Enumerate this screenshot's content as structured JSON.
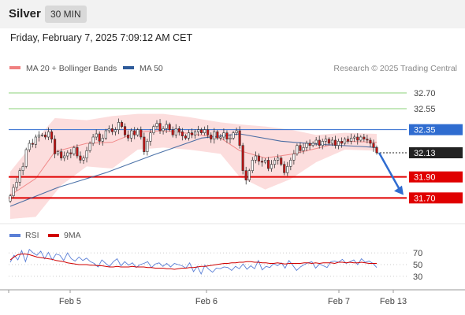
{
  "header": {
    "symbol": "Silver",
    "timeframe": "30 MIN"
  },
  "datetime": "Friday, February 7, 2025 7:09:12 AM CET",
  "colors": {
    "bollinger": "#f08080",
    "bollinger_fill": "#fbd7d7",
    "ma50": "#2e5b9a",
    "support": "#e00000",
    "resistance": "#8bd17a",
    "pivot": "#2f6cd0",
    "price": "#222222",
    "rsi": "#5a7fd6",
    "rsi_ma": "#d00000",
    "candle_up": "#ffffff",
    "candle_down": "#cc1111"
  },
  "chart_data": [
    {
      "type": "candlestick",
      "title": "",
      "legend": {
        "placement": "top-left",
        "entries": [
          "MA 20 + Bollinger Bands",
          "MA 50"
        ]
      },
      "credit": "Research © 2025 Trading Central",
      "x_ticks": [
        "Feb 5",
        "Feb 6",
        "Feb 7",
        "Feb 13"
      ],
      "ylim": [
        31.5,
        32.85
      ],
      "levels": [
        {
          "label": "32.70",
          "value": 32.7,
          "kind": "resistance"
        },
        {
          "label": "32.55",
          "value": 32.55,
          "kind": "resistance"
        },
        {
          "label": "32.35",
          "value": 32.35,
          "kind": "pivot"
        },
        {
          "label": "32.13",
          "value": 32.13,
          "kind": "price"
        },
        {
          "label": "31.90",
          "value": 31.9,
          "kind": "support"
        },
        {
          "label": "31.70",
          "value": 31.7,
          "kind": "support"
        }
      ],
      "close": [
        31.72,
        31.8,
        31.85,
        31.96,
        32.0,
        32.16,
        32.22,
        32.21,
        32.28,
        32.3,
        32.3,
        32.28,
        32.33,
        32.26,
        32.12,
        32.14,
        32.08,
        32.1,
        32.13,
        32.12,
        32.18,
        32.1,
        32.06,
        32.08,
        32.15,
        32.22,
        32.28,
        32.31,
        32.24,
        32.27,
        32.34,
        32.36,
        32.33,
        32.35,
        32.42,
        32.38,
        32.3,
        32.27,
        32.34,
        32.3,
        32.35,
        32.28,
        32.14,
        32.24,
        32.32,
        32.38,
        32.41,
        32.34,
        32.36,
        32.4,
        32.35,
        32.3,
        32.36,
        32.33,
        32.29,
        32.27,
        32.32,
        32.3,
        32.33,
        32.35,
        32.32,
        32.35,
        32.3,
        32.26,
        32.33,
        32.27,
        32.28,
        32.32,
        32.26,
        32.27,
        32.32,
        32.34,
        32.2,
        31.96,
        31.87,
        31.96,
        32.06,
        32.1,
        32.05,
        32.04,
        32.06,
        31.98,
        32.02,
        32.06,
        32.08,
        32.02,
        31.94,
        32.0,
        32.06,
        32.12,
        32.2,
        32.15,
        32.18,
        32.22,
        32.2,
        32.22,
        32.25,
        32.2,
        32.24,
        32.26,
        32.22,
        32.25,
        32.2,
        32.24,
        32.22,
        32.26,
        32.24,
        32.27,
        32.28,
        32.25,
        32.28,
        32.26,
        32.25,
        32.22,
        32.18,
        32.13
      ],
      "ma50_points": [
        [
          0,
          31.62
        ],
        [
          15,
          31.8
        ],
        [
          30,
          31.94
        ],
        [
          45,
          32.11
        ],
        [
          60,
          32.27
        ],
        [
          72,
          32.31
        ],
        [
          85,
          32.24
        ],
        [
          97,
          32.21
        ],
        [
          110,
          32.19
        ],
        [
          115,
          32.18
        ]
      ],
      "bollinger_upper": [
        [
          0,
          31.95
        ],
        [
          8,
          32.25
        ],
        [
          14,
          32.46
        ],
        [
          24,
          32.44
        ],
        [
          32,
          32.48
        ],
        [
          40,
          32.5
        ],
        [
          48,
          32.5
        ],
        [
          56,
          32.47
        ],
        [
          66,
          32.42
        ],
        [
          72,
          32.4
        ],
        [
          80,
          32.38
        ],
        [
          88,
          32.35
        ],
        [
          96,
          32.3
        ],
        [
          105,
          32.32
        ],
        [
          115,
          32.31
        ]
      ],
      "bollinger_lower": [
        [
          0,
          31.5
        ],
        [
          8,
          31.52
        ],
        [
          16,
          31.82
        ],
        [
          24,
          32.0
        ],
        [
          32,
          31.98
        ],
        [
          40,
          32.16
        ],
        [
          48,
          32.18
        ],
        [
          56,
          32.16
        ],
        [
          66,
          32.12
        ],
        [
          72,
          31.9
        ],
        [
          80,
          31.78
        ],
        [
          88,
          31.88
        ],
        [
          96,
          32.04
        ],
        [
          105,
          32.16
        ],
        [
          115,
          32.15
        ]
      ],
      "forecast": {
        "from": 32.13,
        "to": 31.72
      }
    },
    {
      "type": "line",
      "title": "",
      "legend": {
        "placement": "top-left",
        "entries": [
          "RSI",
          "9MA"
        ]
      },
      "y_ticks": [
        "70",
        "50",
        "30"
      ],
      "ylim": [
        15,
        85
      ],
      "rsi": [
        54,
        66,
        58,
        74,
        55,
        76,
        70,
        66,
        73,
        60,
        71,
        58,
        68,
        66,
        57,
        70,
        60,
        56,
        63,
        57,
        61,
        55,
        52,
        46,
        58,
        52,
        47,
        55,
        60,
        48,
        55,
        49,
        53,
        45,
        50,
        52,
        55,
        45,
        51,
        53,
        47,
        52,
        46,
        52,
        50,
        48,
        44,
        53,
        38,
        47,
        34,
        49,
        42,
        37,
        44,
        43,
        46,
        45,
        40,
        47,
        43,
        51,
        42,
        48,
        43,
        57,
        41,
        47,
        45,
        52,
        48,
        53,
        44,
        57,
        49,
        40,
        46,
        50,
        53,
        55,
        44,
        51,
        48,
        45,
        55,
        56,
        54,
        59,
        52,
        55,
        58,
        50,
        60,
        54,
        56,
        52,
        45
      ],
      "ma9": [
        58,
        63,
        67,
        68,
        68,
        67,
        65,
        63,
        62,
        61,
        60,
        59,
        57,
        56,
        55,
        53,
        52,
        51,
        50,
        50,
        50,
        49,
        49,
        48,
        48,
        47,
        46,
        46,
        47,
        46,
        46,
        46,
        47,
        46,
        46,
        46,
        45,
        45,
        44,
        44,
        44,
        43,
        43,
        42,
        43,
        44,
        44,
        45,
        45,
        46,
        47,
        47,
        48,
        49,
        50,
        51,
        52,
        52,
        53,
        53,
        54,
        54,
        55,
        55,
        54,
        54,
        53,
        53,
        52,
        52,
        53,
        52,
        51,
        52,
        52,
        52,
        52,
        53,
        53,
        52,
        53,
        52,
        53,
        53,
        53,
        52,
        54,
        54,
        53,
        54,
        53,
        53,
        54,
        53,
        52,
        52,
        52
      ]
    }
  ]
}
